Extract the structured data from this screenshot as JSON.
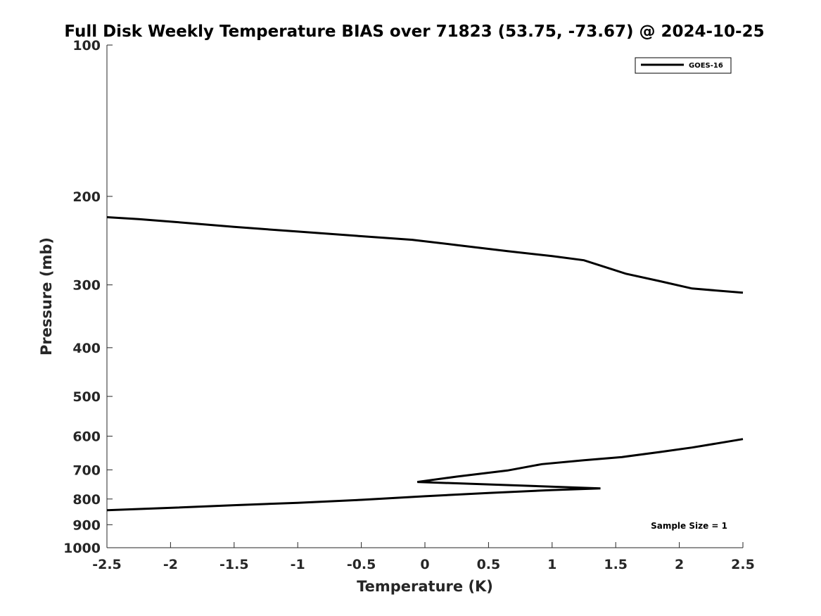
{
  "chart_data": {
    "type": "line",
    "title": "Full Disk Weekly Temperature BIAS over 71823 (53.75, -73.67) @ 2024-10-25",
    "xlabel": "Temperature (K)",
    "ylabel": "Pressure (mb)",
    "xlim": [
      -2.5,
      2.5
    ],
    "ylim": [
      100,
      1000
    ],
    "yscale": "log",
    "yreversed": true,
    "xticks": [
      -2.5,
      -2,
      -1.5,
      -1,
      -0.5,
      0,
      0.5,
      1,
      1.5,
      2,
      2.5
    ],
    "xtick_labels": [
      "-2.5",
      "-2",
      "-1.5",
      "-1",
      "-0.5",
      "0",
      "0.5",
      "1",
      "1.5",
      "2",
      "2.5"
    ],
    "yticks": [
      100,
      200,
      300,
      400,
      500,
      600,
      700,
      800,
      900,
      1000
    ],
    "ytick_labels": [
      "100",
      "200",
      "300",
      "400",
      "500",
      "600",
      "700",
      "800",
      "900",
      "1000"
    ],
    "grid": false,
    "legend_position": "top-right",
    "annotation": "Sample Size = 1",
    "series": [
      {
        "name": "GOES-16",
        "color": "#000000",
        "segments": [
          [
            [
              -2.5,
              220
            ],
            [
              -2.25,
              222
            ],
            [
              -1.95,
              225
            ],
            [
              -1.5,
              230
            ],
            [
              -1.0,
              235
            ],
            [
              -0.5,
              240
            ],
            [
              -0.1,
              244
            ],
            [
              0.25,
              250
            ],
            [
              0.65,
              257
            ],
            [
              1.0,
              263
            ],
            [
              1.25,
              268
            ],
            [
              1.58,
              285
            ],
            [
              1.85,
              295
            ],
            [
              2.1,
              305
            ],
            [
              2.5,
              311
            ]
          ],
          [
            [
              2.5,
              608
            ],
            [
              2.1,
              632
            ],
            [
              1.85,
              645
            ],
            [
              1.55,
              660
            ],
            [
              1.25,
              670
            ],
            [
              0.92,
              682
            ],
            [
              0.65,
              702
            ],
            [
              0.25,
              722
            ],
            [
              -0.06,
              740
            ],
            [
              1.38,
              762
            ],
            [
              1.0,
              768
            ],
            [
              0.5,
              778
            ],
            [
              0.0,
              790
            ],
            [
              -0.5,
              803
            ],
            [
              -1.0,
              814
            ],
            [
              -1.5,
              823
            ],
            [
              -1.95,
              832
            ],
            [
              -2.5,
              842
            ]
          ]
        ]
      }
    ]
  }
}
